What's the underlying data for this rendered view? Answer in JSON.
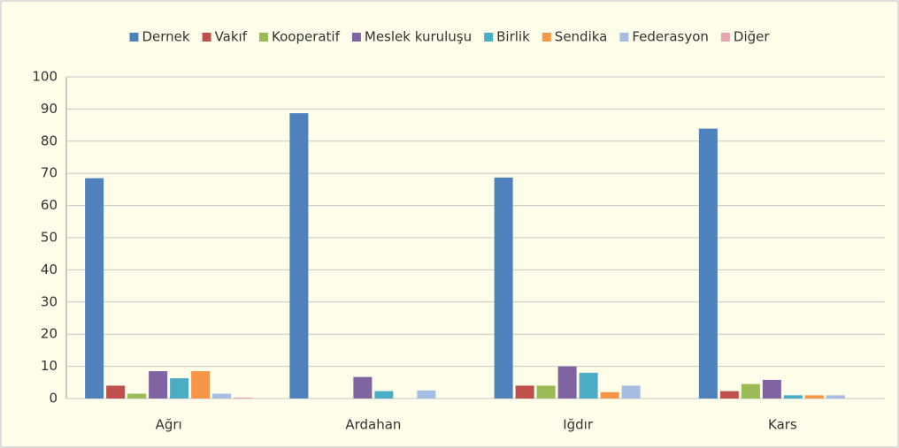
{
  "chart_data": {
    "type": "bar",
    "categories": [
      "Ağrı",
      "Ardahan",
      "Iğdır",
      "Kars"
    ],
    "series": [
      {
        "name": "Dernek",
        "color": "#4f81bd",
        "values": [
          68.5,
          88.7,
          68.7,
          83.9
        ]
      },
      {
        "name": "Vakıf",
        "color": "#c0504d",
        "values": [
          4,
          0,
          4,
          2.3
        ]
      },
      {
        "name": "Kooperatif",
        "color": "#9bbb59",
        "values": [
          1.5,
          0,
          4,
          4.5
        ]
      },
      {
        "name": "Meslek kuruluşu",
        "color": "#8064a2",
        "values": [
          8.5,
          6.7,
          10,
          5.8
        ]
      },
      {
        "name": "Birlik",
        "color": "#4bacc6",
        "values": [
          6.3,
          2.3,
          8,
          1
        ]
      },
      {
        "name": "Sendika",
        "color": "#f79646",
        "values": [
          8.5,
          0,
          2,
          1
        ]
      },
      {
        "name": "Federasyon",
        "color": "#a5bde3",
        "values": [
          1.5,
          2.5,
          4,
          1
        ]
      },
      {
        "name": "Diğer",
        "color": "#e6a5b0",
        "values": [
          0.3,
          0,
          0,
          0
        ]
      }
    ],
    "ylim": [
      0,
      100
    ],
    "yticks": [
      0,
      10,
      20,
      30,
      40,
      50,
      60,
      70,
      80,
      90,
      100
    ],
    "grid": true,
    "legend": "top"
  }
}
